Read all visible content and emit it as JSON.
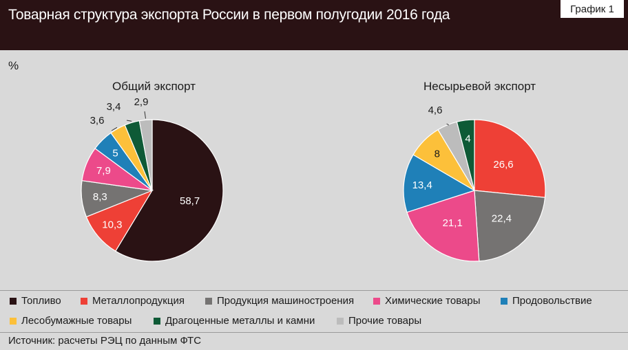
{
  "header": {
    "title": "Товарная структура экспорта России в первом полугодии 2016 года",
    "graph_label": "График 1"
  },
  "unit": "%",
  "source": "Источник: расчеты РЭЦ по данным ФТС",
  "legend": [
    {
      "label": "Топливо",
      "color": "#2a1214"
    },
    {
      "label": "Металлопродукция",
      "color": "#ee4036"
    },
    {
      "label": "Продукция машиностроения",
      "color": "#757372"
    },
    {
      "label": "Химические товары",
      "color": "#ec4a8a"
    },
    {
      "label": "Продовольствие",
      "color": "#1f80b8"
    },
    {
      "label": "Лесобумажные товары",
      "color": "#fcc03a"
    },
    {
      "label": "Драгоценные металлы и камни",
      "color": "#0e5a36"
    },
    {
      "label": "Прочие товары",
      "color": "#bcbcbc"
    }
  ],
  "chart_data": [
    {
      "type": "pie",
      "title": "Общий экспорт",
      "slices": [
        {
          "label": "Топливо",
          "value": 58.7,
          "display": "58,7",
          "color": "#2a1214"
        },
        {
          "label": "Металлопродукция",
          "value": 10.3,
          "display": "10,3",
          "color": "#ee4036"
        },
        {
          "label": "Продукция машиностроения",
          "value": 8.3,
          "display": "8,3",
          "color": "#757372"
        },
        {
          "label": "Химические товары",
          "value": 7.9,
          "display": "7,9",
          "color": "#ec4a8a"
        },
        {
          "label": "Продовольствие",
          "value": 5,
          "display": "5",
          "color": "#1f80b8"
        },
        {
          "label": "Лесобумажные товары",
          "value": 3.6,
          "display": "3,6",
          "color": "#fcc03a"
        },
        {
          "label": "Драгоценные металлы и камни",
          "value": 3.4,
          "display": "3,4",
          "color": "#0e5a36"
        },
        {
          "label": "Прочие товары",
          "value": 2.9,
          "display": "2,9",
          "color": "#bcbcbc"
        }
      ]
    },
    {
      "type": "pie",
      "title": "Несырьевой экспорт",
      "slices": [
        {
          "label": "Металлопродукция",
          "value": 26.6,
          "display": "26,6",
          "color": "#ee4036"
        },
        {
          "label": "Продукция машиностроения",
          "value": 22.4,
          "display": "22,4",
          "color": "#757372"
        },
        {
          "label": "Химические товары",
          "value": 21.1,
          "display": "21,1",
          "color": "#ec4a8a"
        },
        {
          "label": "Продовольствие",
          "value": 13.4,
          "display": "13,4",
          "color": "#1f80b8"
        },
        {
          "label": "Лесобумажные товары",
          "value": 8,
          "display": "8",
          "color": "#fcc03a"
        },
        {
          "label": "Прочие товары",
          "value": 4.6,
          "display": "4,6",
          "color": "#bcbcbc"
        },
        {
          "label": "Драгоценные металлы и камни",
          "value": 4,
          "display": "4",
          "color": "#0e5a36"
        }
      ]
    }
  ]
}
